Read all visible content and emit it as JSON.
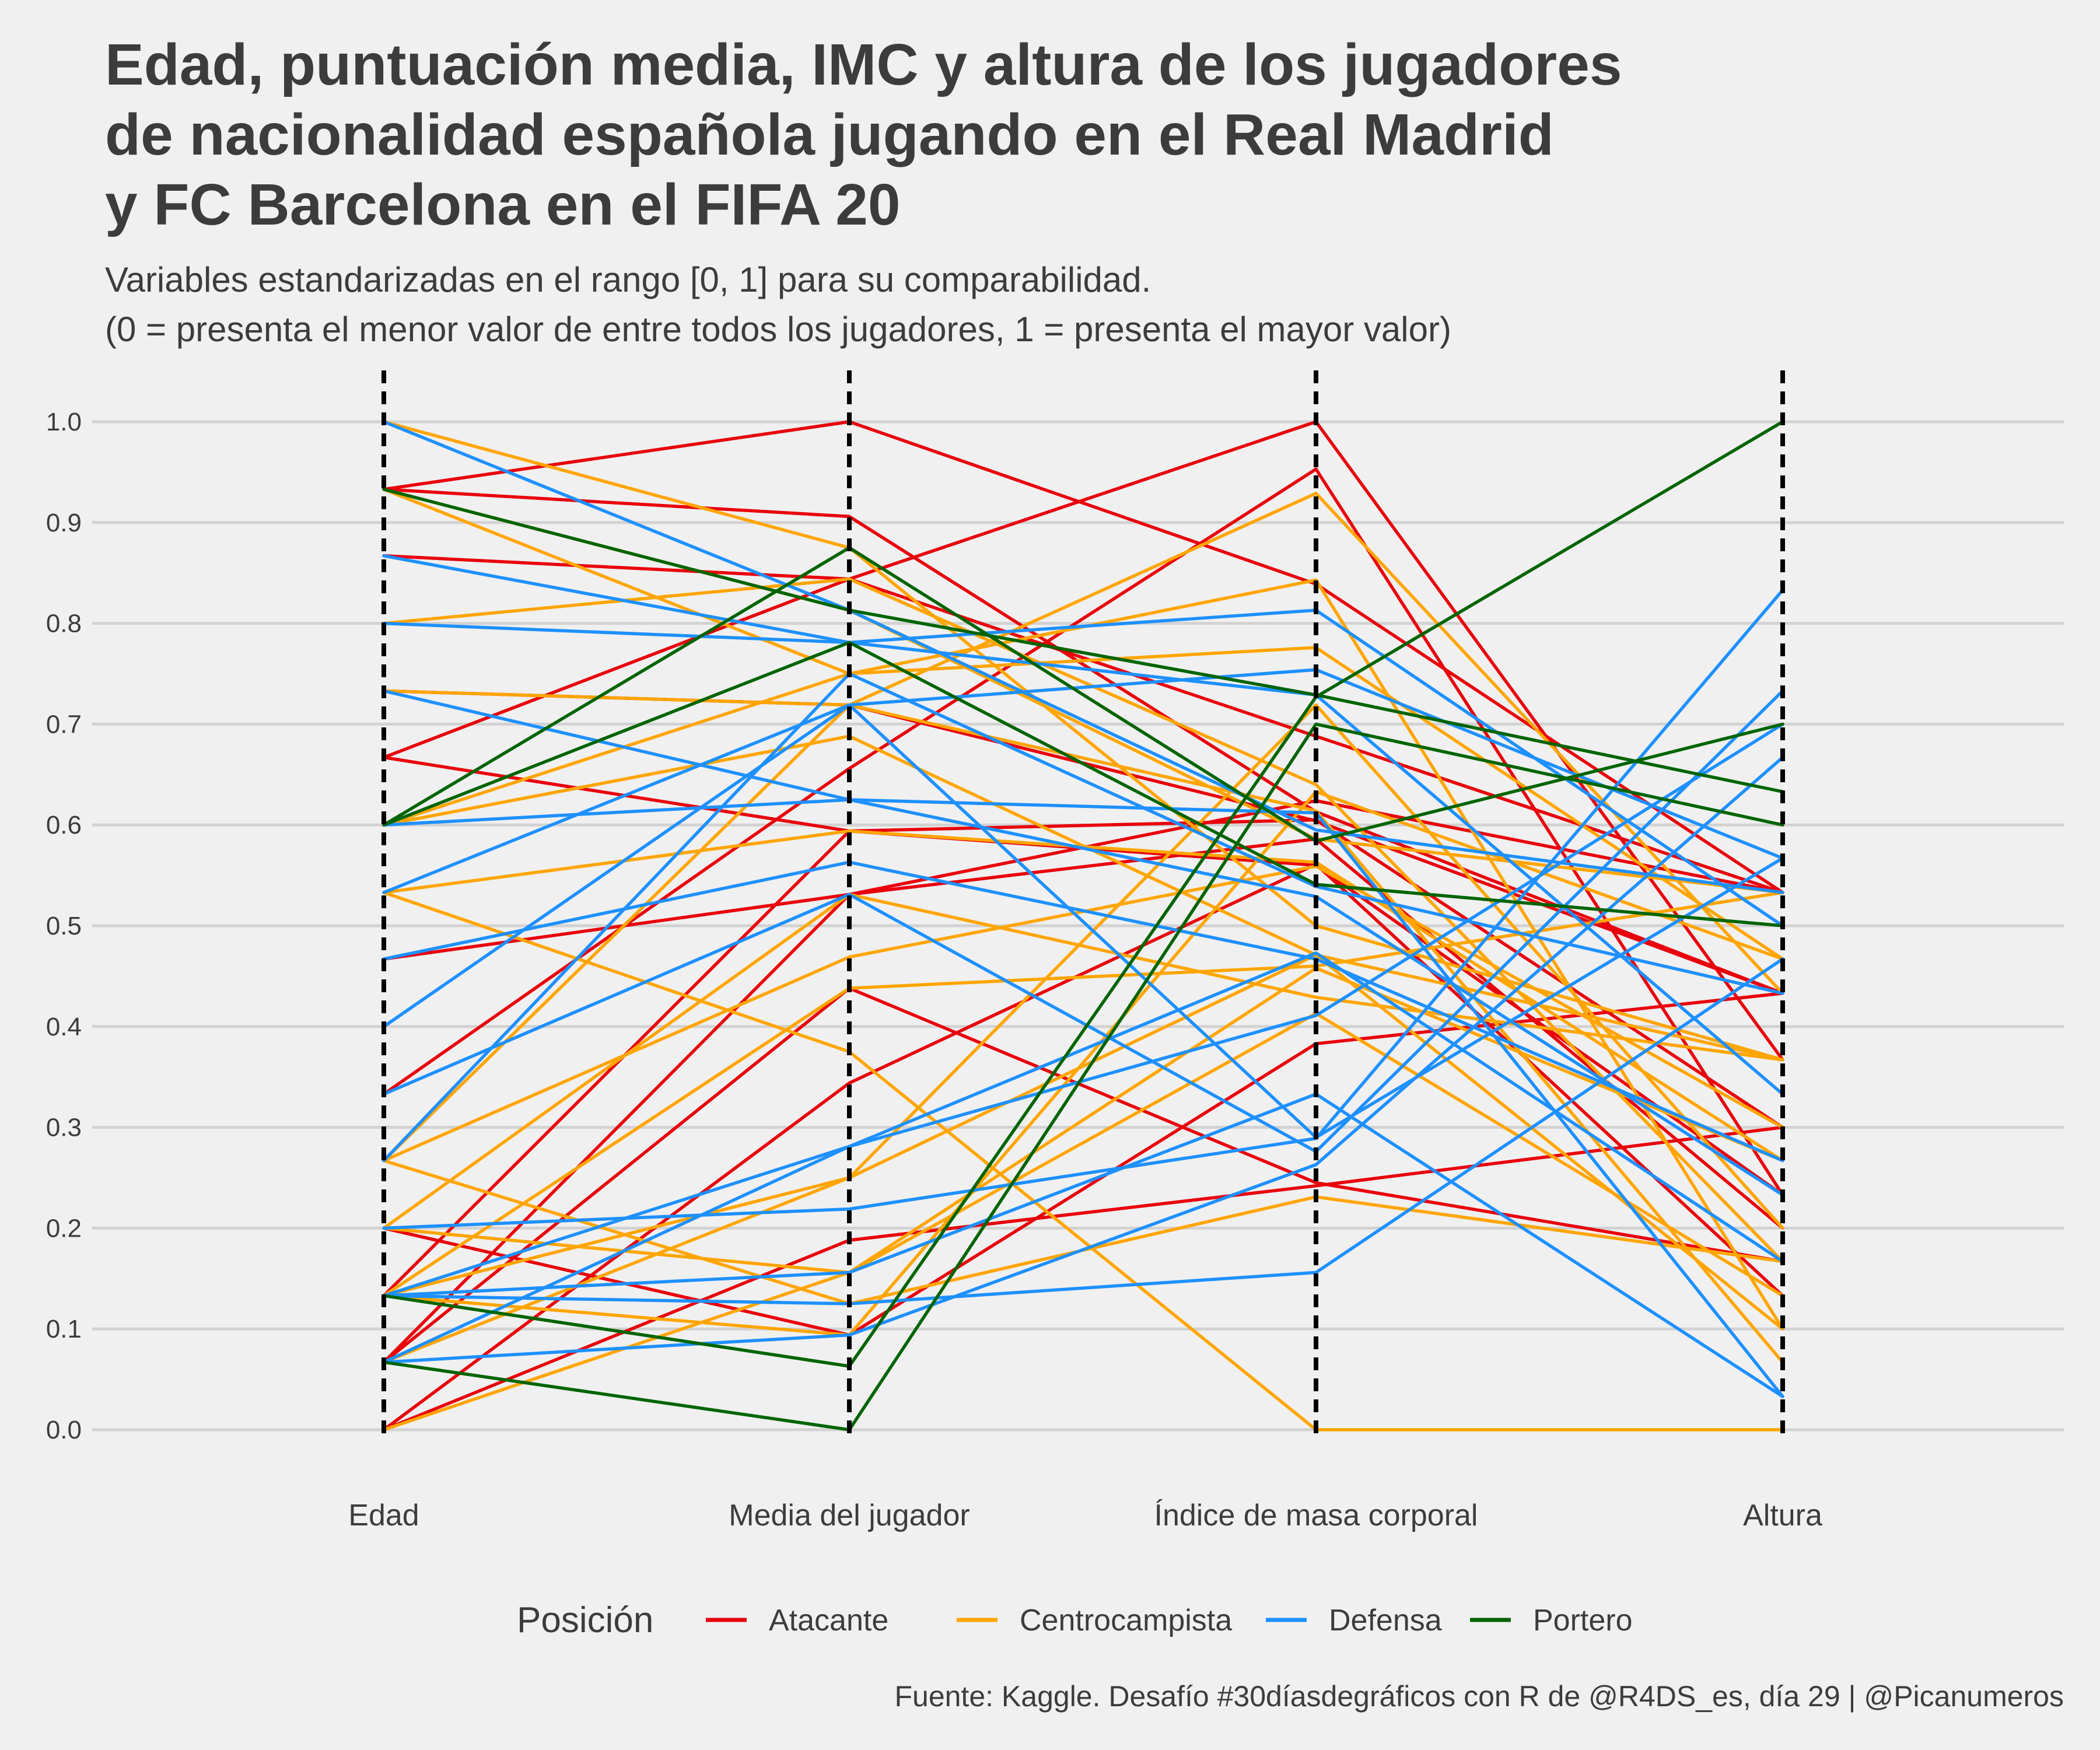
{
  "chart_data": {
    "type": "line",
    "title": [
      "Edad, puntuación media, IMC y altura de los jugadores",
      "de nacionalidad española jugando en el Real Madrid",
      "y FC Barcelona en el FIFA 20"
    ],
    "subtitle": [
      "Variables estandarizadas en el rango [0, 1] para su comparabilidad.",
      "(0 = presenta el menor valor de entre todos los jugadores, 1 = presenta el mayor valor)"
    ],
    "caption": "Fuente: Kaggle. Desafío #30díasdegráficos con R de @R4DS_es, día 29 | @Picanumeros",
    "categories": [
      "Edad",
      "Media del jugador",
      "Índice de masa corporal",
      "Altura"
    ],
    "y_ticks": [
      "0.0",
      "0.1",
      "0.2",
      "0.3",
      "0.4",
      "0.5",
      "0.6",
      "0.7",
      "0.8",
      "0.9",
      "1.0"
    ],
    "ylim": [
      0,
      1
    ],
    "grid": true,
    "legend": {
      "title": "Posición",
      "placement": "bottom",
      "entries": [
        {
          "name": "Atacante",
          "color": "#e8000b"
        },
        {
          "name": "Centrocampista",
          "color": "#ffa500"
        },
        {
          "name": "Defensa",
          "color": "#1e90ff"
        },
        {
          "name": "Portero",
          "color": "#006400"
        }
      ]
    },
    "series": [
      {
        "name": "Atacante",
        "color": "#e8000b",
        "lines": [
          [
            0.933,
            1.0,
            0.839,
            0.533
          ],
          [
            0.933,
            0.906,
            0.613,
            0.433
          ],
          [
            0.867,
            0.844,
            0.688,
            0.533
          ],
          [
            0.733,
            0.719,
            0.604,
            0.433
          ],
          [
            0.667,
            0.844,
            1.0,
            0.367
          ],
          [
            0.667,
            0.594,
            0.605,
            0.3
          ],
          [
            0.467,
            0.531,
            0.624,
            0.533
          ],
          [
            0.333,
            0.656,
            0.953,
            0.233
          ],
          [
            0.2,
            0.094,
            0.383,
            0.433
          ],
          [
            0.067,
            0.438,
            0.245,
            0.167
          ],
          [
            0.067,
            0.531,
            0.586,
            0.2
          ],
          [
            0.0,
            0.344,
            0.561,
            0.133
          ],
          [
            0.0,
            0.188,
            0.242,
            0.3
          ],
          [
            0.133,
            0.594,
            0.56,
            0.233
          ]
        ]
      },
      {
        "name": "Centrocampista",
        "color": "#ffa500",
        "lines": [
          [
            1.0,
            0.875,
            0.5,
            0.367
          ],
          [
            0.933,
            0.813,
            0.586,
            0.533
          ],
          [
            0.933,
            0.75,
            0.776,
            0.467
          ],
          [
            0.8,
            0.844,
            0.64,
            0.167
          ],
          [
            0.733,
            0.719,
            0.929,
            0.433
          ],
          [
            0.6,
            0.75,
            0.843,
            0.1
          ],
          [
            0.6,
            0.688,
            0.471,
            0.367
          ],
          [
            0.533,
            0.594,
            0.563,
            0.267
          ],
          [
            0.533,
            0.375,
            0.0,
            0.0
          ],
          [
            0.267,
            0.719,
            0.614,
            0.067
          ],
          [
            0.267,
            0.469,
            0.559,
            0.3
          ],
          [
            0.267,
            0.125,
            0.231,
            0.167
          ],
          [
            0.2,
            0.531,
            0.429,
            0.367
          ],
          [
            0.2,
            0.156,
            0.413,
            0.133
          ],
          [
            0.133,
            0.438,
            0.46,
            0.533
          ],
          [
            0.133,
            0.25,
            0.719,
            0.2
          ],
          [
            0.133,
            0.094,
            0.633,
            0.467
          ],
          [
            0.067,
            0.25,
            0.471,
            0.1
          ],
          [
            0.0,
            0.156,
            0.458,
            0.267
          ]
        ]
      },
      {
        "name": "Defensa",
        "color": "#1e90ff",
        "lines": [
          [
            1.0,
            0.813,
            0.595,
            0.533
          ],
          [
            0.867,
            0.781,
            0.729,
            0.333
          ],
          [
            0.8,
            0.781,
            0.813,
            0.5
          ],
          [
            0.733,
            0.625,
            0.529,
            0.233
          ],
          [
            0.6,
            0.625,
            0.612,
            0.033
          ],
          [
            0.533,
            0.719,
            0.754,
            0.567
          ],
          [
            0.467,
            0.563,
            0.467,
            0.267
          ],
          [
            0.4,
            0.719,
            0.29,
            0.567
          ],
          [
            0.333,
            0.531,
            0.276,
            0.733
          ],
          [
            0.267,
            0.75,
            0.539,
            0.433
          ],
          [
            0.2,
            0.219,
            0.289,
            0.833
          ],
          [
            0.133,
            0.281,
            0.411,
            0.7
          ],
          [
            0.133,
            0.125,
            0.156,
            0.467
          ],
          [
            0.067,
            0.094,
            0.263,
            0.667
          ],
          [
            0.067,
            0.281,
            0.473,
            0.167
          ],
          [
            0.133,
            0.156,
            0.333,
            0.033
          ]
        ]
      },
      {
        "name": "Portero",
        "color": "#006400",
        "lines": [
          [
            0.933,
            0.813,
            0.729,
            0.633
          ],
          [
            0.6,
            0.875,
            0.584,
            0.7
          ],
          [
            0.6,
            0.781,
            0.541,
            0.5
          ],
          [
            0.133,
            0.063,
            0.727,
            1.0
          ],
          [
            0.067,
            0.0,
            0.7,
            0.6
          ]
        ]
      }
    ]
  }
}
